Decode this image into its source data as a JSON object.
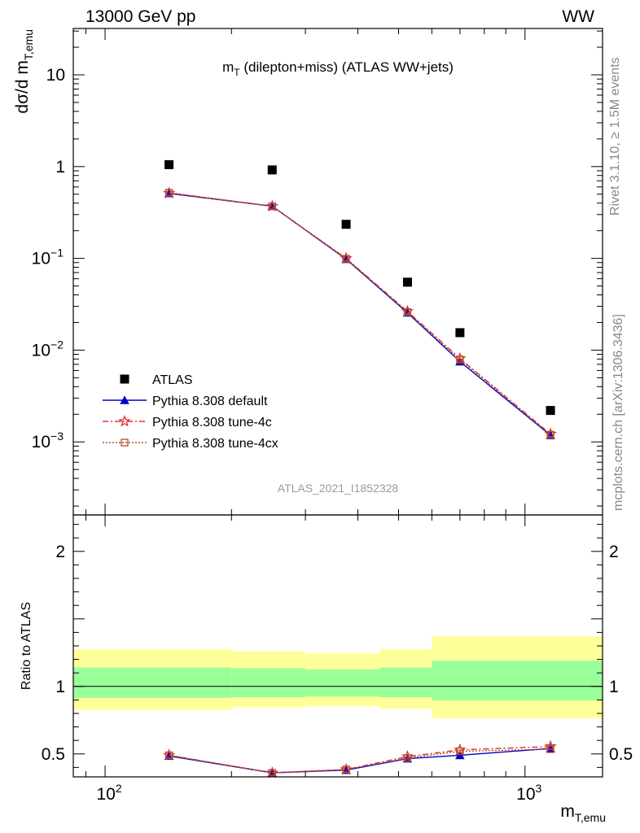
{
  "header": {
    "left": "13000 GeV pp",
    "right": "WW"
  },
  "side_text": {
    "rivet": "Rivet 3.1.10, ≥ 1.5M events",
    "mcplots": "mcplots.cern.ch [arXiv:1306.3436]"
  },
  "chart_data": [
    {
      "type": "scatter",
      "title": "m_T (dilepton+miss) (ATLAS WW+jets)",
      "title_main": "m",
      "title_sub": "T",
      "title_rest": " (dilepton+miss) (ATLAS WW+jets)",
      "ylabel_main": "dσ/d m",
      "ylabel_sub": "T,emu",
      "analysis_label": "ATLAS_2021_I1852328",
      "xscale": "log",
      "yscale": "log",
      "xlim": [
        84,
        1530
      ],
      "ylim": [
        0.00016,
        32
      ],
      "yticks": [
        {
          "value": 10,
          "label": "10"
        },
        {
          "value": 1,
          "label": "1"
        },
        {
          "value": 0.1,
          "label": "10",
          "exp": "−1"
        },
        {
          "value": 0.01,
          "label": "10",
          "exp": "−2"
        },
        {
          "value": 0.001,
          "label": "10",
          "exp": "−3"
        }
      ],
      "legend_position": "bottom-left",
      "series": [
        {
          "name": "ATLAS",
          "color": "#000000",
          "marker": "square",
          "x": [
            142,
            250,
            375,
            525,
            700,
            1150
          ],
          "y": [
            1.05,
            0.92,
            0.235,
            0.055,
            0.0155,
            0.0022
          ]
        },
        {
          "name": "Pythia 8.308 default",
          "color": "#0000cc",
          "marker": "triangle",
          "line": "solid",
          "x": [
            142,
            250,
            375,
            525,
            700,
            1150
          ],
          "y": [
            0.51,
            0.37,
            0.098,
            0.0255,
            0.0075,
            0.00118
          ]
        },
        {
          "name": "Pythia 8.308 tune-4c",
          "color": "#e03030",
          "marker": "star",
          "line": "dashdot",
          "x": [
            142,
            250,
            375,
            525,
            700,
            1150
          ],
          "y": [
            0.515,
            0.37,
            0.1,
            0.0265,
            0.0081,
            0.00122
          ]
        },
        {
          "name": "Pythia 8.308 tune-4cx",
          "color": "#b05020",
          "marker": "open-square",
          "line": "dotted",
          "x": [
            142,
            250,
            375,
            525,
            700,
            1150
          ],
          "y": [
            0.52,
            0.37,
            0.099,
            0.026,
            0.0079,
            0.0012
          ]
        }
      ]
    },
    {
      "type": "scatter",
      "ylabel": "Ratio to ATLAS",
      "xlabel_main": "m",
      "xlabel_sub": "T,emu",
      "xscale": "log",
      "xlim": [
        84,
        1530
      ],
      "ylim": [
        0.33,
        2.27
      ],
      "yticks": [
        {
          "value": 0.5,
          "label": "0.5"
        },
        {
          "value": 1,
          "label": "1"
        },
        {
          "value": 2,
          "label": "2"
        }
      ],
      "xticks": [
        {
          "value": 100,
          "label": "10",
          "exp": "2"
        },
        {
          "value": 1000,
          "label": "10",
          "exp": "3"
        }
      ],
      "bands": {
        "bins": [
          {
            "x0": 84,
            "x1": 200,
            "stat_lo": 0.915,
            "stat_hi": 1.14,
            "tot_lo": 0.825,
            "tot_hi": 1.275
          },
          {
            "x0": 200,
            "x1": 300,
            "stat_lo": 0.92,
            "stat_hi": 1.135,
            "tot_lo": 0.845,
            "tot_hi": 1.26
          },
          {
            "x0": 300,
            "x1": 450,
            "stat_lo": 0.925,
            "stat_hi": 1.125,
            "tot_lo": 0.855,
            "tot_hi": 1.245
          },
          {
            "x0": 450,
            "x1": 600,
            "stat_lo": 0.92,
            "stat_hi": 1.14,
            "tot_lo": 0.835,
            "tot_hi": 1.275
          },
          {
            "x0": 600,
            "x1": 1530,
            "stat_lo": 0.895,
            "stat_hi": 1.19,
            "tot_lo": 0.765,
            "tot_hi": 1.37
          }
        ],
        "stat_color": "#99ff99",
        "total_color": "#ffff99"
      },
      "series": [
        {
          "name": "Pythia 8.308 default",
          "color": "#0000cc",
          "marker": "triangle",
          "line": "solid",
          "x": [
            142,
            250,
            375,
            525,
            700,
            1150
          ],
          "y": [
            0.485,
            0.36,
            0.38,
            0.465,
            0.49,
            0.54
          ]
        },
        {
          "name": "Pythia 8.308 tune-4c",
          "color": "#e03030",
          "marker": "star",
          "line": "dashdot",
          "x": [
            142,
            250,
            375,
            525,
            700,
            1150
          ],
          "y": [
            0.49,
            0.36,
            0.385,
            0.48,
            0.53,
            0.555
          ]
        },
        {
          "name": "Pythia 8.308 tune-4cx",
          "color": "#b05020",
          "marker": "open-square",
          "line": "dotted",
          "x": [
            142,
            250,
            375,
            525,
            700,
            1150
          ],
          "y": [
            0.49,
            0.36,
            0.385,
            0.47,
            0.52,
            0.535
          ]
        }
      ]
    }
  ]
}
